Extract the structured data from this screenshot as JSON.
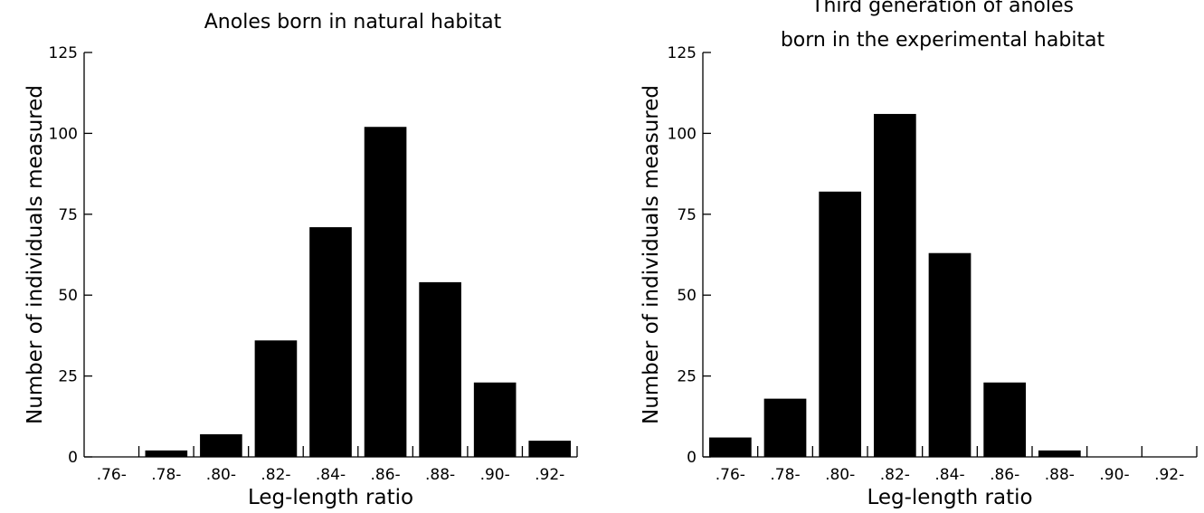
{
  "chart_data": [
    {
      "type": "bar",
      "title_lines": [
        "Anoles born in natural habitat"
      ],
      "xlabel": "Leg-length ratio",
      "ylabel": "Number of individuals measured",
      "categories": [
        ".76-",
        ".78-",
        ".80-",
        ".82-",
        ".84-",
        ".86-",
        ".88-",
        ".90-",
        ".92-"
      ],
      "values": [
        0,
        2,
        7,
        36,
        71,
        102,
        54,
        23,
        5
      ],
      "ylim": [
        0,
        125
      ],
      "yticks": [
        0,
        25,
        50,
        75,
        100,
        125
      ],
      "grid": false,
      "bar_color": "#000000"
    },
    {
      "type": "bar",
      "title_lines": [
        "Third generation of anoles",
        "born in the experimental habitat"
      ],
      "xlabel": "Leg-length ratio",
      "ylabel": "Number of individuals measured",
      "categories": [
        ".76-",
        ".78-",
        ".80-",
        ".82-",
        ".84-",
        ".86-",
        ".88-",
        ".90-",
        ".92-"
      ],
      "values": [
        6,
        18,
        82,
        106,
        63,
        23,
        2,
        0,
        0
      ],
      "ylim": [
        0,
        125
      ],
      "yticks": [
        0,
        25,
        50,
        75,
        100,
        125
      ],
      "grid": false,
      "bar_color": "#000000"
    }
  ]
}
